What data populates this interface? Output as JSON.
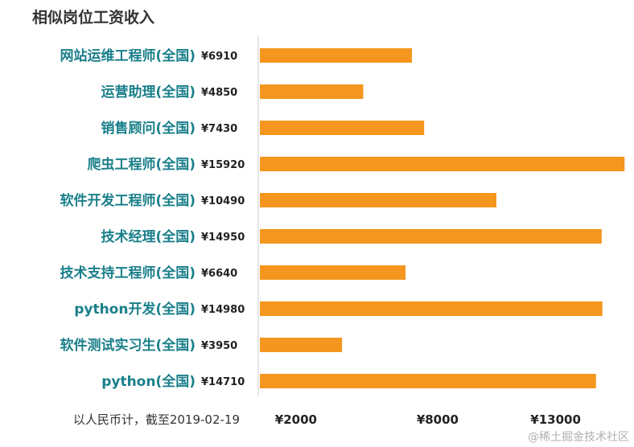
{
  "chart_data": {
    "type": "bar",
    "orientation": "horizontal",
    "title": "相似岗位工资收入",
    "categories": [
      "网站运维工程师(全国)",
      "运营助理(全国)",
      "销售顾问(全国)",
      "爬虫工程师(全国)",
      "软件开发工程师(全国)",
      "技术经理(全国)",
      "技术支持工程师(全国)",
      "python开发(全国)",
      "软件测试实习生(全国)",
      "python(全国)"
    ],
    "value_labels": [
      "¥6910",
      "¥4850",
      "¥7430",
      "¥15920",
      "¥10490",
      "¥14950",
      "¥6640",
      "¥14980",
      "¥3950",
      "¥14710"
    ],
    "values": [
      6910,
      4850,
      7430,
      15920,
      10490,
      14950,
      6640,
      14980,
      3950,
      14710
    ],
    "x_ticks": [
      2000,
      8000,
      13000
    ],
    "x_tick_labels": [
      "¥2000",
      "¥8000",
      "¥13000"
    ],
    "bar_color": "#f5961e",
    "label_color": "#1a7f8a",
    "grid": false,
    "legend": "none"
  },
  "footnote": "以人民币计，截至2019-02-19",
  "watermark": "@稀土掘金技术社区"
}
